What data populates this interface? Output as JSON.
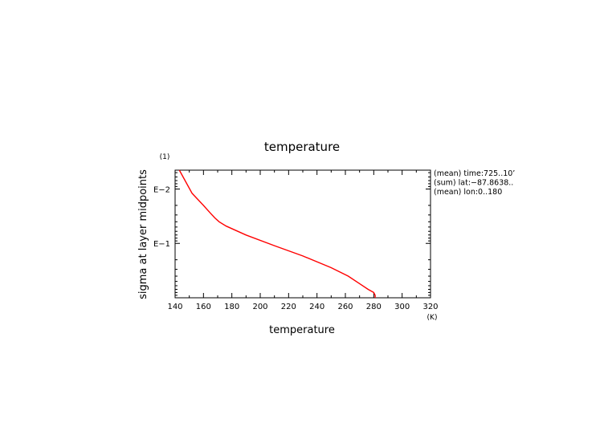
{
  "chart_data": {
    "type": "line",
    "title": "temperature",
    "xlabel": "temperature",
    "ylabel": "sigma at layer midpoints",
    "x_unit": "(K)",
    "y_unit": "(1)",
    "xlim": [
      140,
      320
    ],
    "xticks": [
      140,
      160,
      180,
      200,
      220,
      240,
      260,
      280,
      300,
      320
    ],
    "yscale": "log",
    "ylim": [
      0.0045,
      1.0
    ],
    "yticks": [
      {
        "value": 0.01,
        "label": "E−2"
      },
      {
        "value": 0.1,
        "label": "E−1"
      }
    ],
    "y_inverted": true,
    "grid": false,
    "notes": [
      "(mean) time:725..10’",
      "(sum) lat:−87.8638..",
      "(mean) lon:0..180"
    ],
    "series": [
      {
        "color": "#ff0000",
        "x": [
          143,
          152,
          160,
          165,
          168,
          171,
          176,
          190,
          210,
          230,
          250,
          262,
          270,
          276,
          280,
          281,
          281
        ],
        "y": [
          0.0045,
          0.012,
          0.02,
          0.028,
          0.034,
          0.04,
          0.048,
          0.07,
          0.11,
          0.17,
          0.28,
          0.4,
          0.55,
          0.7,
          0.8,
          0.9,
          1.0
        ]
      }
    ]
  }
}
